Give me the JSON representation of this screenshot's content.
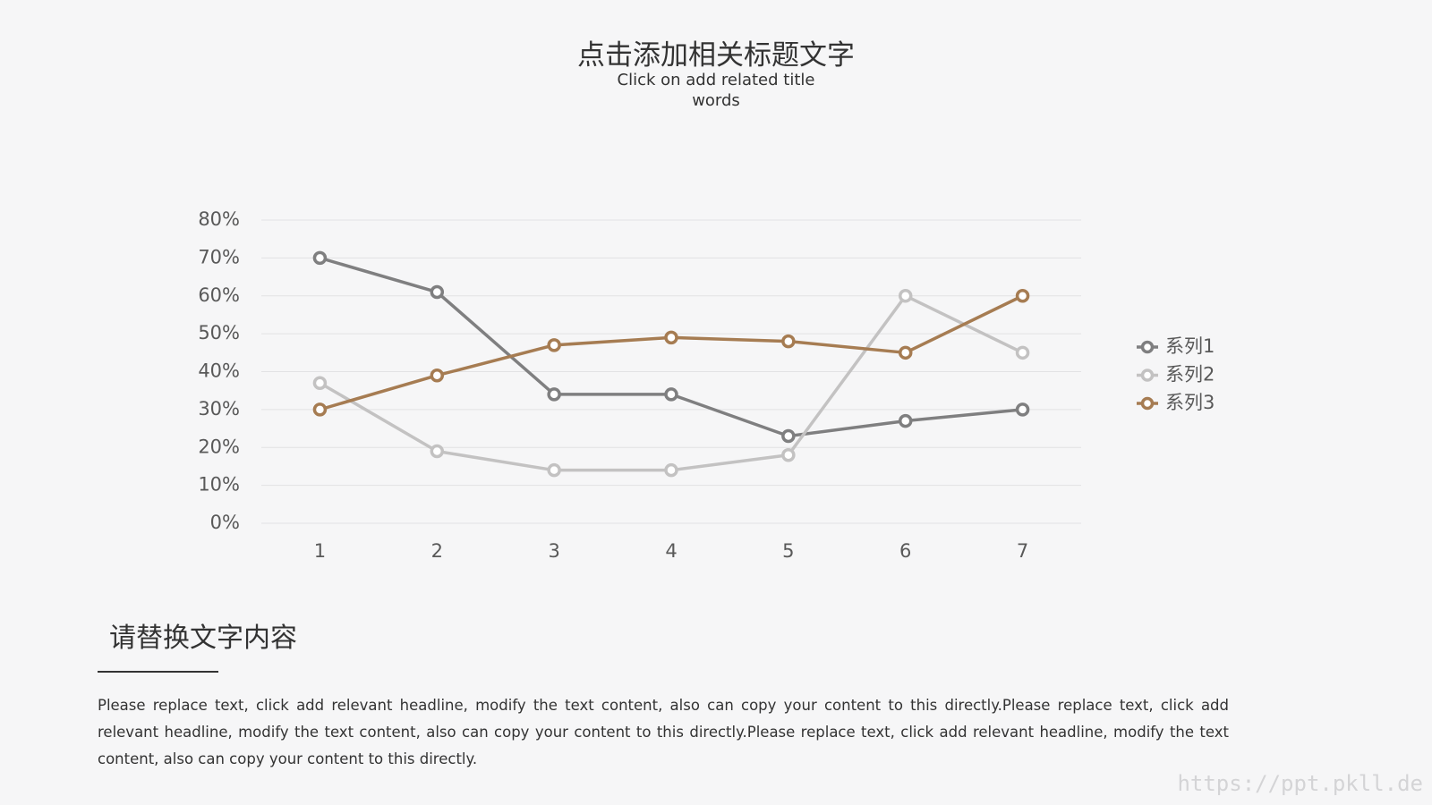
{
  "chart_data": {
    "type": "line",
    "title": "点击添加相关标题文字",
    "subtitle": "Click on add related title words",
    "categories": [
      "1",
      "2",
      "3",
      "4",
      "5",
      "6",
      "7"
    ],
    "series": [
      {
        "name": "系列1",
        "color": "#7f7f80",
        "values": [
          70,
          61,
          34,
          34,
          23,
          27,
          30
        ]
      },
      {
        "name": "系列2",
        "color": "#c3c2c2",
        "values": [
          37,
          19,
          14,
          14,
          18,
          60,
          45
        ]
      },
      {
        "name": "系列3",
        "color": "#a67c52",
        "values": [
          30,
          39,
          47,
          49,
          48,
          45,
          60
        ]
      }
    ],
    "ylim": [
      0,
      80
    ],
    "yticks": [
      {
        "value": 0,
        "label": "0%"
      },
      {
        "value": 10,
        "label": "10%"
      },
      {
        "value": 20,
        "label": "20%"
      },
      {
        "value": 30,
        "label": "30%"
      },
      {
        "value": 40,
        "label": "40%"
      },
      {
        "value": 50,
        "label": "50%"
      },
      {
        "value": 60,
        "label": "60%"
      },
      {
        "value": 70,
        "label": "70%"
      },
      {
        "value": 80,
        "label": "80%"
      }
    ],
    "grid": true,
    "legend": "right"
  },
  "section": {
    "heading": "请替换文字内容",
    "body": "Please replace text, click add relevant headline, modify the text content, also can copy your content to this directly.Please replace text, click add relevant headline, modify the text content, also can copy your content to this directly.Please replace text, click add relevant headline, modify the text content, also can copy your content to this directly."
  },
  "watermark": "https://ppt.pkll.de"
}
